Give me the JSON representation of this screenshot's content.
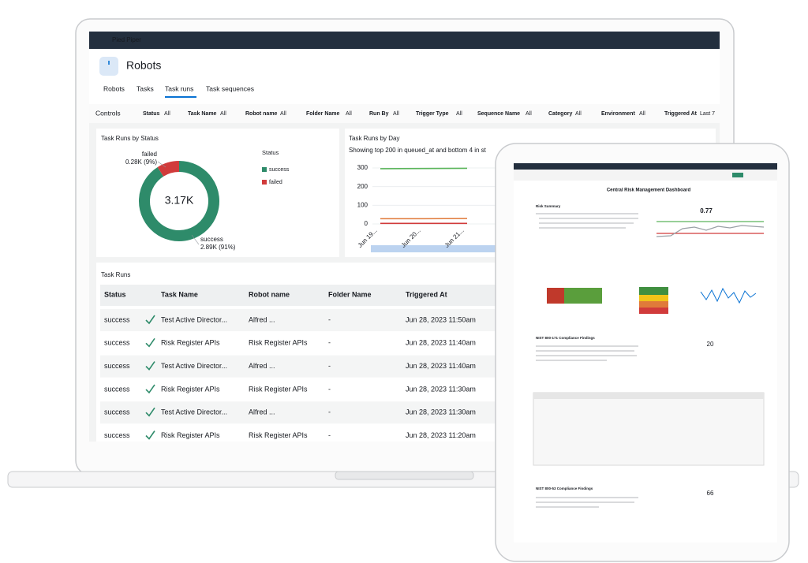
{
  "laptop": {
    "app_name": "Pied Piper",
    "page_title": "Robots",
    "tabs": [
      "Robots",
      "Tasks",
      "Task runs",
      "Task sequences"
    ],
    "active_tab": 2,
    "controls_label": "Controls",
    "filters": [
      {
        "name": "Status",
        "value": "All"
      },
      {
        "name": "Task Name",
        "value": "All"
      },
      {
        "name": "Robot name",
        "value": "All"
      },
      {
        "name": "Folder Name",
        "value": "All"
      },
      {
        "name": "Run By",
        "value": "All"
      },
      {
        "name": "Trigger Type",
        "value": "All"
      },
      {
        "name": "Sequence Name",
        "value": "All"
      },
      {
        "name": "Category",
        "value": "All"
      },
      {
        "name": "Environment",
        "value": "All"
      },
      {
        "name": "Triggered At",
        "value": "Last 7"
      }
    ],
    "status_chart": {
      "type": "pie",
      "title": "Task Runs by Status",
      "total_label": "3.17K",
      "legend_title": "Status",
      "segments": [
        {
          "name": "success",
          "value": 91,
          "value_label": "2.89K (91%)",
          "color": "#2e8b6a"
        },
        {
          "name": "failed",
          "value": 9,
          "value_label": "0.28K (9%)",
          "color": "#d13b3b"
        }
      ]
    },
    "day_chart": {
      "type": "line",
      "title": "Task Runs by Day",
      "subtitle": "Showing top 200 in queued_at and bottom 4 in st",
      "categories": [
        "Jun 19...",
        "Jun 20...",
        "Jun 21..."
      ],
      "ylim": [
        0,
        300
      ],
      "yticks": [
        0,
        100,
        200,
        300
      ],
      "series": [
        {
          "color": "#5bb55b",
          "values": [
            296,
            297,
            298
          ]
        },
        {
          "color": "#e07a3a",
          "values": [
            28,
            28,
            29
          ]
        },
        {
          "color": "#d13b3b",
          "values": [
            3,
            3,
            3
          ]
        }
      ]
    },
    "table": {
      "title": "Task Runs",
      "columns": [
        "Status",
        "Task Name",
        "Robot name",
        "Folder Name",
        "Triggered At"
      ],
      "rows": [
        [
          "success",
          "Test Active Director...",
          "Alfred ...",
          "-",
          "Jun 28, 2023 11:50am"
        ],
        [
          "success",
          "Risk Register APIs",
          "Risk Register APIs",
          "-",
          "Jun 28, 2023 11:40am"
        ],
        [
          "success",
          "Test Active Director...",
          "Alfred ...",
          "-",
          "Jun 28, 2023 11:40am"
        ],
        [
          "success",
          "Risk Register APIs",
          "Risk Register APIs",
          "-",
          "Jun 28, 2023 11:30am"
        ],
        [
          "success",
          "Test Active Director...",
          "Alfred ...",
          "-",
          "Jun 28, 2023 11:30am"
        ],
        [
          "success",
          "Risk Register APIs",
          "Risk Register APIs",
          "-",
          "Jun 28, 2023 11:20am"
        ]
      ]
    }
  },
  "tablet": {
    "title": "Central Risk Management Dashboard",
    "risk_summary": "Risk Summary",
    "score": 0.77,
    "findings_171": "NIST 800-171 Compliance Findings",
    "count_171": 20,
    "findings_53": "NIST 800-53 Compliance Findings",
    "count_53": 66
  }
}
